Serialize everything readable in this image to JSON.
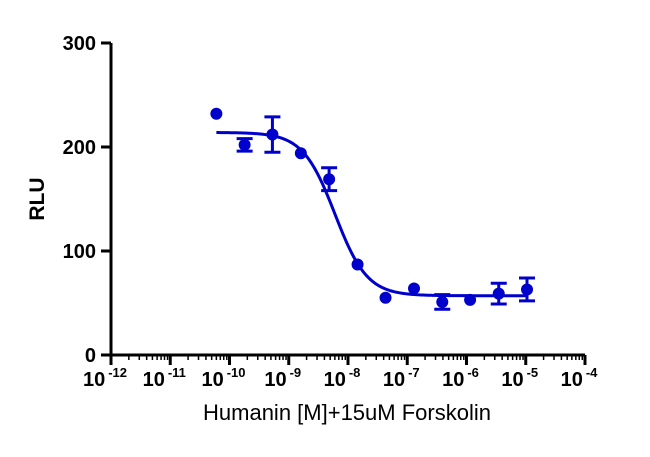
{
  "chart_data": {
    "type": "scatter",
    "title": "",
    "xlabel": "Humanin [M]+15uM Forskolin",
    "ylabel": "RLU",
    "x_scale": "log10",
    "xlim": [
      1e-12,
      0.0001
    ],
    "ylim": [
      0,
      300
    ],
    "y_ticks": [
      0,
      100,
      200,
      300
    ],
    "x_tick_labels": [
      {
        "base": "10",
        "exp": "-12",
        "value": 1e-12
      },
      {
        "base": "10",
        "exp": "-11",
        "value": 1e-11
      },
      {
        "base": "10",
        "exp": "-10",
        "value": 1e-10
      },
      {
        "base": "10",
        "exp": "-9",
        "value": 1e-09
      },
      {
        "base": "10",
        "exp": "-8",
        "value": 1e-08
      },
      {
        "base": "10",
        "exp": "-7",
        "value": 1e-07
      },
      {
        "base": "10",
        "exp": "-6",
        "value": 1e-06
      },
      {
        "base": "10",
        "exp": "-5",
        "value": 1e-05
      },
      {
        "base": "10",
        "exp": "-4",
        "value": 0.0001
      }
    ],
    "grid": false,
    "color": "#0000CC",
    "series": [
      {
        "points": [
          {
            "x": 6e-11,
            "y": 232
          },
          {
            "x": 1.8e-10,
            "y": 202,
            "err": 6
          },
          {
            "x": 5.3e-10,
            "y": 212,
            "err": 17
          },
          {
            "x": 1.6e-09,
            "y": 194
          },
          {
            "x": 4.8e-09,
            "y": 169,
            "err": 11
          },
          {
            "x": 1.45e-08,
            "y": 87
          },
          {
            "x": 4.3e-08,
            "y": 55
          },
          {
            "x": 1.3e-07,
            "y": 64
          },
          {
            "x": 3.9e-07,
            "y": 51,
            "err": 7
          },
          {
            "x": 1.15e-06,
            "y": 53
          },
          {
            "x": 3.5e-06,
            "y": 59,
            "err": 10
          },
          {
            "x": 1.05e-05,
            "y": 63,
            "err": 11
          }
        ],
        "fit": {
          "model": "four-parameter logistic",
          "top": 214,
          "bottom": 57,
          "log_ec50": -8.22,
          "hill": -1.6,
          "x_range": [
            6e-11,
            1.05e-05
          ]
        }
      }
    ]
  }
}
